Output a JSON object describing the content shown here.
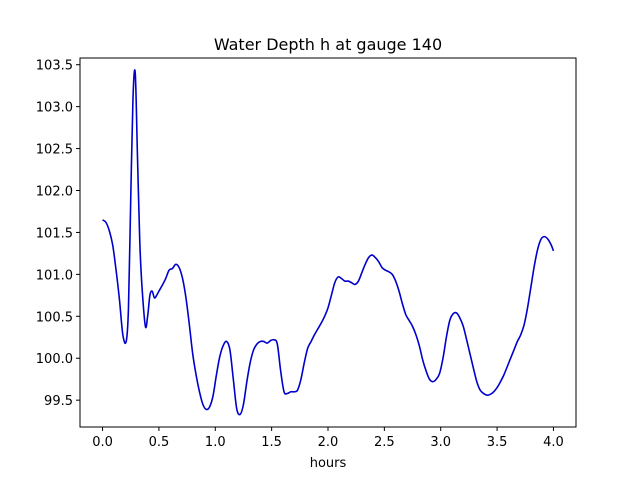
{
  "chart_data": {
    "type": "line",
    "title": "Water Depth h at gauge 140",
    "xlabel": "hours",
    "ylabel": "",
    "xlim": [
      -0.2,
      4.2
    ],
    "ylim": [
      99.18,
      103.58
    ],
    "xticks": [
      0.0,
      0.5,
      1.0,
      1.5,
      2.0,
      2.5,
      3.0,
      3.5,
      4.0
    ],
    "xtick_labels": [
      "0.0",
      "0.5",
      "1.0",
      "1.5",
      "2.0",
      "2.5",
      "3.0",
      "3.5",
      "4.0"
    ],
    "yticks": [
      99.5,
      100.0,
      100.5,
      101.0,
      101.5,
      102.0,
      102.5,
      103.0,
      103.5
    ],
    "ytick_labels": [
      "99.5",
      "100.0",
      "100.5",
      "101.0",
      "101.5",
      "102.0",
      "102.5",
      "103.0",
      "103.5"
    ],
    "grid": false,
    "series": [
      {
        "color": "#0000cc",
        "x": [
          0.0,
          0.03,
          0.06,
          0.09,
          0.12,
          0.15,
          0.18,
          0.21,
          0.23,
          0.25,
          0.27,
          0.29,
          0.31,
          0.33,
          0.35,
          0.38,
          0.4,
          0.42,
          0.44,
          0.46,
          0.48,
          0.5,
          0.53,
          0.56,
          0.59,
          0.62,
          0.65,
          0.68,
          0.71,
          0.74,
          0.77,
          0.8,
          0.83,
          0.86,
          0.89,
          0.92,
          0.95,
          0.98,
          1.01,
          1.04,
          1.07,
          1.1,
          1.13,
          1.16,
          1.19,
          1.22,
          1.25,
          1.28,
          1.31,
          1.34,
          1.37,
          1.4,
          1.43,
          1.46,
          1.49,
          1.52,
          1.55,
          1.58,
          1.61,
          1.64,
          1.67,
          1.7,
          1.73,
          1.76,
          1.79,
          1.82,
          1.85,
          1.88,
          1.91,
          1.94,
          1.97,
          2.0,
          2.03,
          2.06,
          2.09,
          2.12,
          2.15,
          2.18,
          2.21,
          2.24,
          2.27,
          2.3,
          2.33,
          2.36,
          2.39,
          2.42,
          2.45,
          2.48,
          2.51,
          2.54,
          2.57,
          2.6,
          2.63,
          2.66,
          2.69,
          2.72,
          2.75,
          2.78,
          2.81,
          2.84,
          2.87,
          2.9,
          2.93,
          2.96,
          2.99,
          3.02,
          3.05,
          3.08,
          3.11,
          3.14,
          3.17,
          3.2,
          3.23,
          3.26,
          3.29,
          3.32,
          3.35,
          3.38,
          3.41,
          3.44,
          3.47,
          3.5,
          3.53,
          3.56,
          3.59,
          3.62,
          3.65,
          3.68,
          3.71,
          3.74,
          3.77,
          3.8,
          3.83,
          3.86,
          3.89,
          3.92,
          3.95,
          3.98,
          4.0
        ],
        "y": [
          101.65,
          101.62,
          101.52,
          101.35,
          101.05,
          100.7,
          100.28,
          100.2,
          100.6,
          101.9,
          103.1,
          103.4,
          102.4,
          101.4,
          100.85,
          100.38,
          100.5,
          100.75,
          100.8,
          100.72,
          100.75,
          100.8,
          100.87,
          100.95,
          101.05,
          101.07,
          101.12,
          101.08,
          100.95,
          100.72,
          100.4,
          100.05,
          99.8,
          99.6,
          99.45,
          99.39,
          99.42,
          99.55,
          99.8,
          100.02,
          100.15,
          100.2,
          100.1,
          99.75,
          99.4,
          99.33,
          99.45,
          99.72,
          99.95,
          100.1,
          100.17,
          100.2,
          100.2,
          100.18,
          100.21,
          100.22,
          100.17,
          99.85,
          99.6,
          99.58,
          99.6,
          99.6,
          99.62,
          99.75,
          99.95,
          100.12,
          100.2,
          100.28,
          100.35,
          100.42,
          100.5,
          100.6,
          100.75,
          100.9,
          100.97,
          100.95,
          100.92,
          100.92,
          100.9,
          100.88,
          100.92,
          101.02,
          101.12,
          101.2,
          101.23,
          101.2,
          101.15,
          101.08,
          101.05,
          101.03,
          101.0,
          100.92,
          100.8,
          100.65,
          100.52,
          100.45,
          100.38,
          100.28,
          100.15,
          99.98,
          99.85,
          99.75,
          99.72,
          99.75,
          99.82,
          100.0,
          100.25,
          100.45,
          100.53,
          100.54,
          100.48,
          100.38,
          100.22,
          100.05,
          99.88,
          99.72,
          99.62,
          99.58,
          99.56,
          99.57,
          99.6,
          99.65,
          99.72,
          99.8,
          99.9,
          100.0,
          100.1,
          100.2,
          100.28,
          100.4,
          100.6,
          100.85,
          101.1,
          101.3,
          101.42,
          101.45,
          101.42,
          101.35,
          101.28
        ]
      }
    ]
  }
}
